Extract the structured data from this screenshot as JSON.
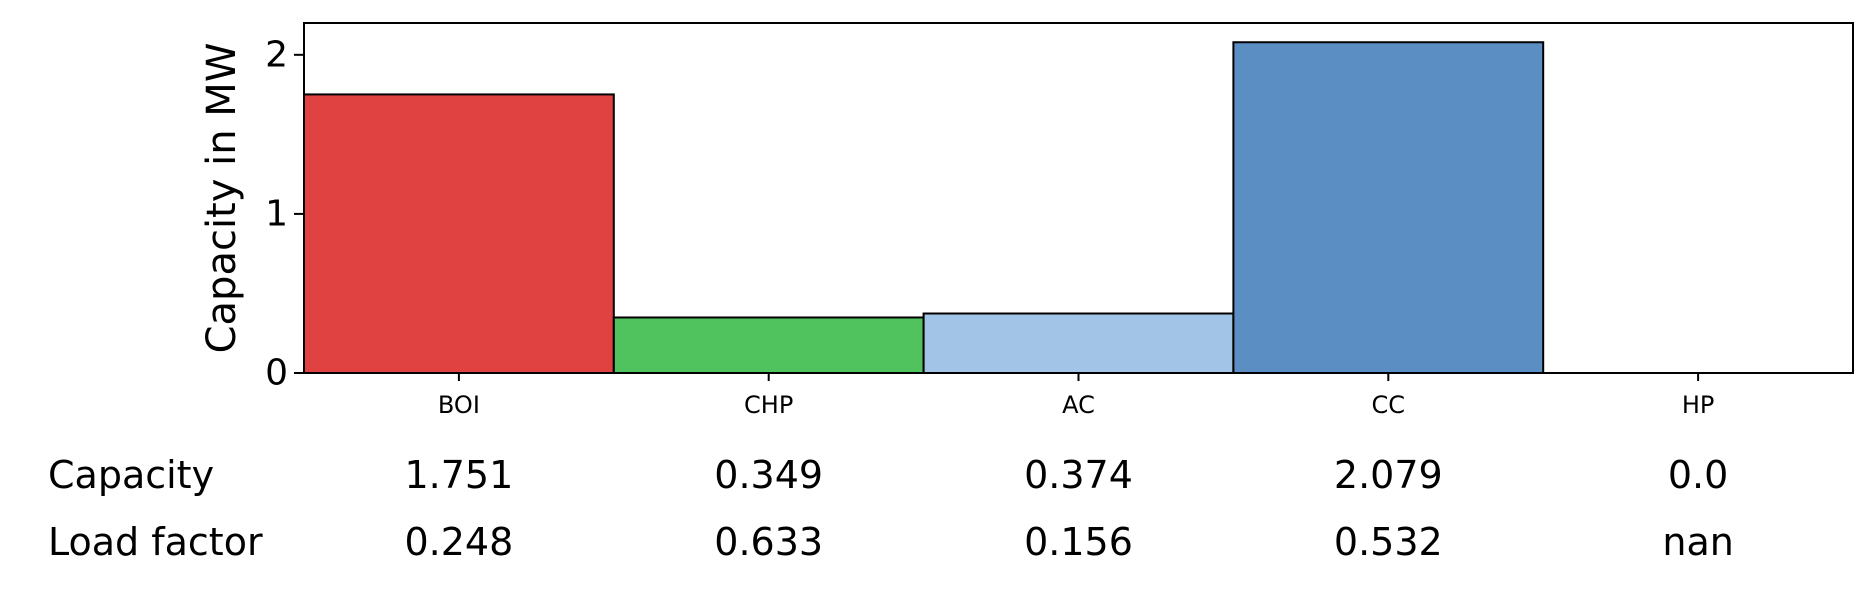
{
  "chart_data": {
    "type": "bar",
    "categories": [
      "BOI",
      "CHP",
      "AC",
      "CC",
      "HP"
    ],
    "values": [
      1.751,
      0.349,
      0.374,
      2.079,
      0.0
    ],
    "colors": [
      "#e04141",
      "#50c35e",
      "#a2c4e6",
      "#5b8fc4",
      "#5b8fc4"
    ],
    "ylabel": "Capacity in MW",
    "xlabel": "",
    "ylim": [
      0,
      2.2
    ],
    "yticks": [
      0,
      1,
      2
    ],
    "grid": false,
    "table": {
      "rows": [
        {
          "label": "Capacity",
          "values": [
            "1.751",
            "0.349",
            "0.374",
            "2.079",
            "0.0"
          ]
        },
        {
          "label": "Load factor",
          "values": [
            "0.248",
            "0.633",
            "0.156",
            "0.532",
            "nan"
          ]
        }
      ]
    }
  }
}
